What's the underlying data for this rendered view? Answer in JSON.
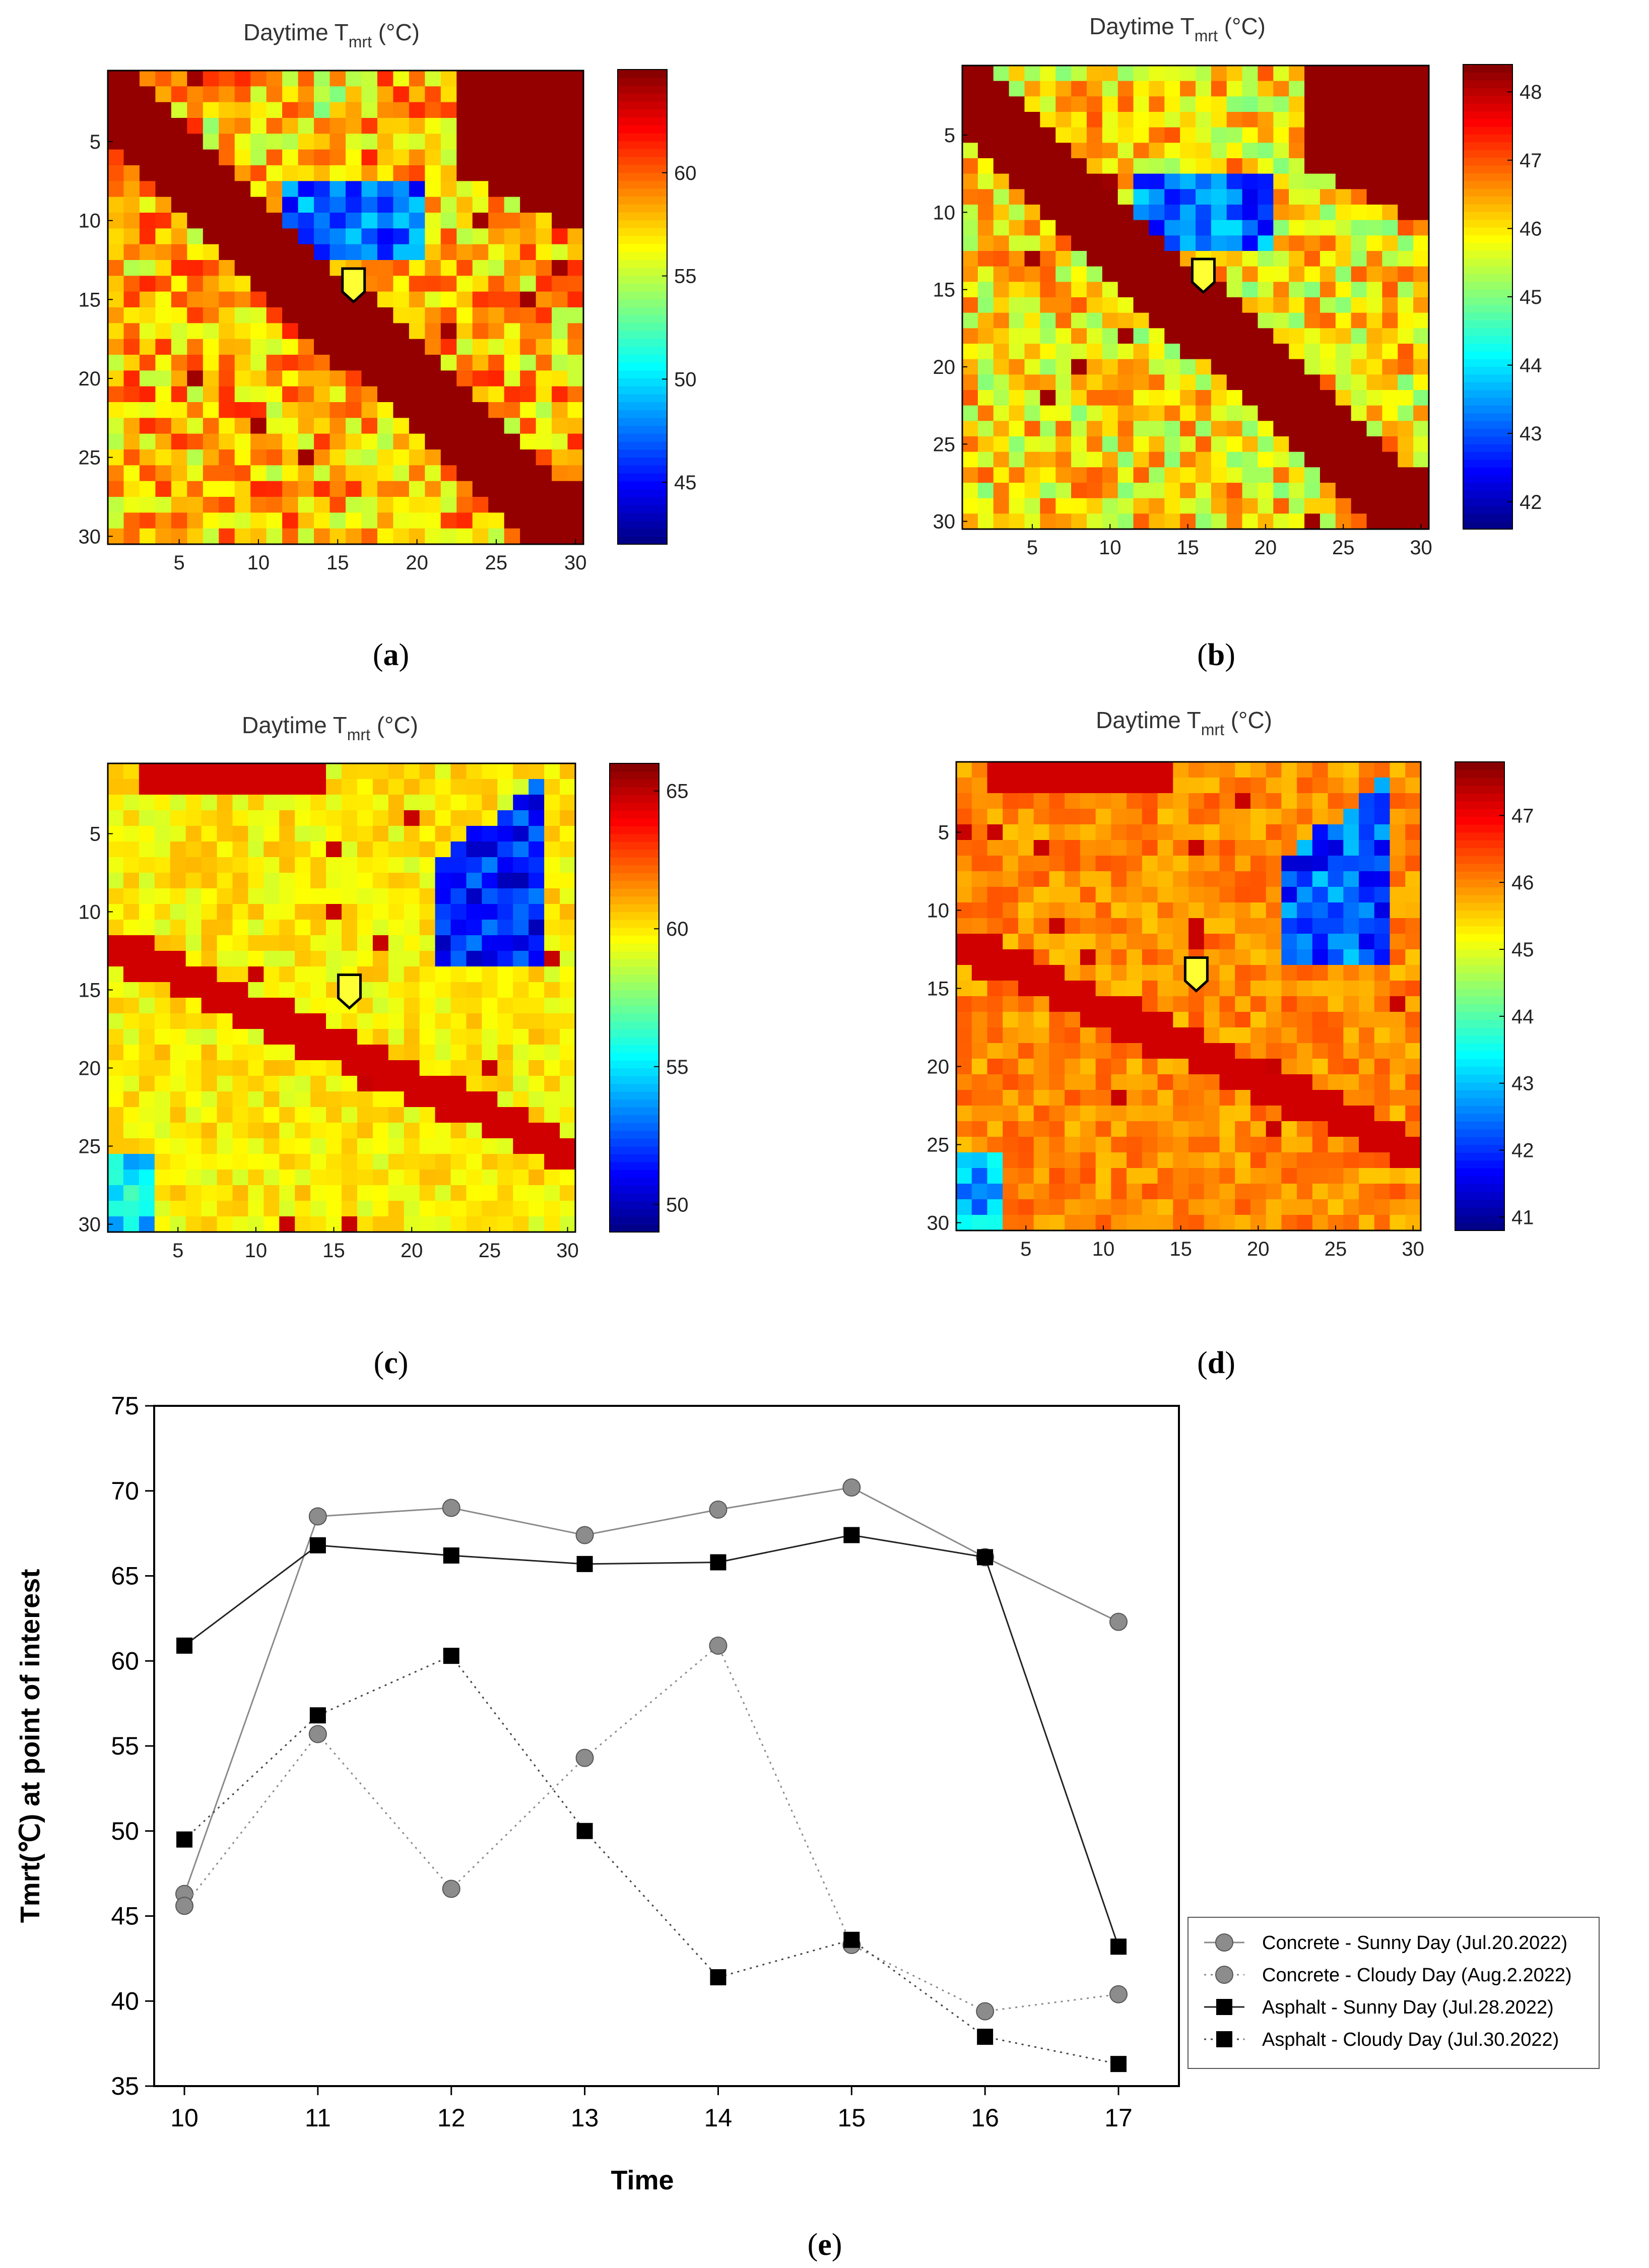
{
  "chart_data": [
    {
      "type": "heatmap",
      "panel": "a",
      "title": "Daytime T",
      "title_subscript": "mrt",
      "title_unit": " (°C)",
      "grid_size": [
        30,
        30
      ],
      "xticks": [
        5,
        10,
        15,
        20,
        25,
        30
      ],
      "yticks": [
        5,
        10,
        15,
        20,
        25,
        30
      ],
      "colorbar": {
        "min": 42,
        "max": 65,
        "ticks": [
          45,
          50,
          55,
          60
        ]
      },
      "marker_cell": [
        16,
        14
      ],
      "caption": "a"
    },
    {
      "type": "heatmap",
      "panel": "b",
      "title": "Daytime T",
      "title_subscript": "mrt",
      "title_unit": " (°C)",
      "grid_size": [
        30,
        30
      ],
      "xticks": [
        5,
        10,
        15,
        20,
        25,
        30
      ],
      "yticks": [
        5,
        10,
        15,
        20,
        25,
        30
      ],
      "colorbar": {
        "min": 41.6,
        "max": 48.4,
        "ticks": [
          42,
          43,
          44,
          45,
          46,
          47,
          48
        ]
      },
      "marker_cell": [
        16,
        14
      ],
      "caption": "b"
    },
    {
      "type": "heatmap",
      "panel": "c",
      "title": "Daytime T",
      "title_subscript": "mrt",
      "title_unit": " (°C)",
      "grid_size": [
        30,
        30
      ],
      "xticks": [
        5,
        10,
        15,
        20,
        25,
        30
      ],
      "yticks": [
        5,
        10,
        15,
        20,
        25,
        30
      ],
      "colorbar": {
        "min": 49,
        "max": 66,
        "ticks": [
          50,
          55,
          60,
          65
        ]
      },
      "marker_cell": [
        16,
        15
      ],
      "caption": "c"
    },
    {
      "type": "heatmap",
      "panel": "d",
      "title": "Daytime T",
      "title_subscript": "mrt",
      "title_unit": " (°C)",
      "grid_size": [
        30,
        30
      ],
      "xticks": [
        5,
        10,
        15,
        20,
        25,
        30
      ],
      "yticks": [
        5,
        10,
        15,
        20,
        25,
        30
      ],
      "colorbar": {
        "min": 40.8,
        "max": 47.8,
        "ticks": [
          41,
          42,
          43,
          44,
          45,
          46,
          47
        ]
      },
      "marker_cell": [
        16,
        14
      ],
      "caption": "d"
    },
    {
      "type": "line",
      "panel": "e",
      "x": [
        10,
        11,
        12,
        13,
        14,
        15,
        16,
        17
      ],
      "xlabel": "Time",
      "ylabel": "Tmrt(℃) at point of interest",
      "ylim": [
        35,
        75
      ],
      "yticks": [
        35,
        40,
        45,
        50,
        55,
        60,
        65,
        70,
        75
      ],
      "series": [
        {
          "name": "Concrete - Sunny Day (Jul.20.2022)",
          "marker": "circle",
          "dash": "solid",
          "values": [
            46.3,
            68.5,
            69.0,
            67.4,
            68.9,
            70.2,
            66.1,
            62.3
          ]
        },
        {
          "name": "Concrete - Cloudy Day (Aug.2.2022)",
          "marker": "circle",
          "dash": "dotted",
          "values": [
            45.6,
            55.7,
            46.6,
            54.3,
            60.9,
            43.3,
            39.4,
            40.4
          ]
        },
        {
          "name": "Asphalt - Sunny Day (Jul.28.2022)",
          "marker": "square",
          "dash": "solid",
          "values": [
            60.9,
            66.8,
            66.2,
            65.7,
            65.8,
            67.4,
            66.1,
            43.2
          ]
        },
        {
          "name": "Asphalt - Cloudy Day (Jul.30.2022)",
          "marker": "square",
          "dash": "dotted",
          "values": [
            49.5,
            56.8,
            60.3,
            50.0,
            41.4,
            43.6,
            37.9,
            36.3
          ]
        }
      ],
      "caption": "e"
    }
  ]
}
